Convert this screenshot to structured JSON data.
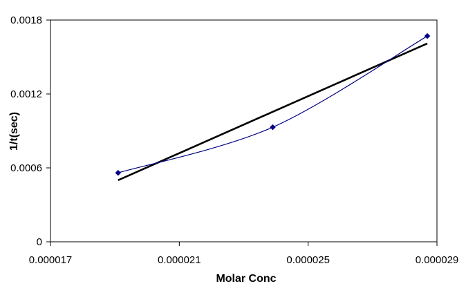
{
  "chart_data": {
    "type": "scatter",
    "title": "",
    "xlabel": "Molar Conc",
    "ylabel": "1/t(sec)",
    "xlim": [
      1.7e-05,
      2.9e-05
    ],
    "ylim": [
      0,
      0.0018
    ],
    "x_ticks": [
      1.7e-05,
      2.1e-05,
      2.5e-05,
      2.9e-05
    ],
    "x_tick_labels": [
      "0.000017",
      "0.000021",
      "0.000025",
      "0.000029"
    ],
    "y_ticks": [
      0,
      0.0006,
      0.0012,
      0.0018
    ],
    "y_tick_labels": [
      "0",
      "0.0006",
      "0.0012",
      "0.0018"
    ],
    "grid": false,
    "legend": "none",
    "series": [
      {
        "style": "smoothed line with diamond markers",
        "color": "#000080",
        "x": [
          1.91e-05,
          2.39e-05,
          2.87e-05
        ],
        "y": [
          0.00056,
          0.00093,
          0.00167
        ]
      }
    ],
    "trendline": {
      "style": "linear",
      "color": "#000000",
      "x": [
        1.91e-05,
        2.87e-05
      ],
      "y": [
        0.0005,
        0.00161
      ]
    }
  }
}
